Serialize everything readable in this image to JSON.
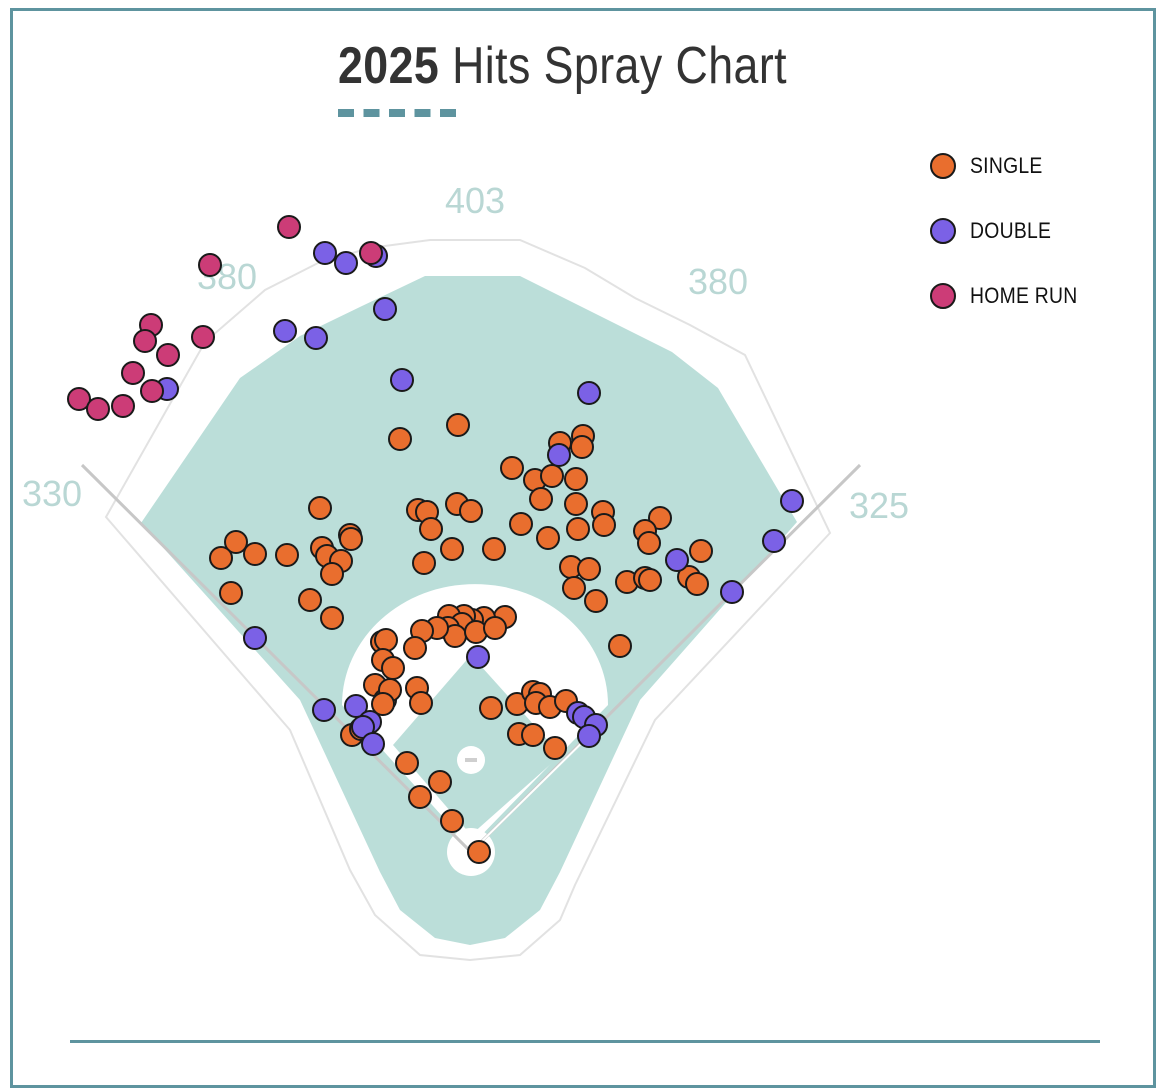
{
  "title": {
    "year": "2025",
    "rest": "Hits Spray Chart"
  },
  "colors": {
    "frame": "#5e949f",
    "field": "#bbded9",
    "single": "#e96e2e",
    "double": "#7b61e6",
    "home_run": "#cc3c77"
  },
  "legend": [
    {
      "label": "SINGLE",
      "color": "#e96e2e"
    },
    {
      "label": "DOUBLE",
      "color": "#7b61e6"
    },
    {
      "label": "HOME RUN",
      "color": "#cc3c77"
    }
  ],
  "distances": {
    "left_field_line": "330",
    "left_center": "380",
    "center": "403",
    "right_center": "380",
    "right_field_line": "325"
  },
  "chart_data": {
    "type": "scatter",
    "title": "2025 Hits Spray Chart",
    "legend_placement": "top-right",
    "series": [
      {
        "name": "SINGLE",
        "count": 140
      },
      {
        "name": "DOUBLE",
        "count": 28
      },
      {
        "name": "HOME RUN",
        "count": 15
      }
    ]
  }
}
